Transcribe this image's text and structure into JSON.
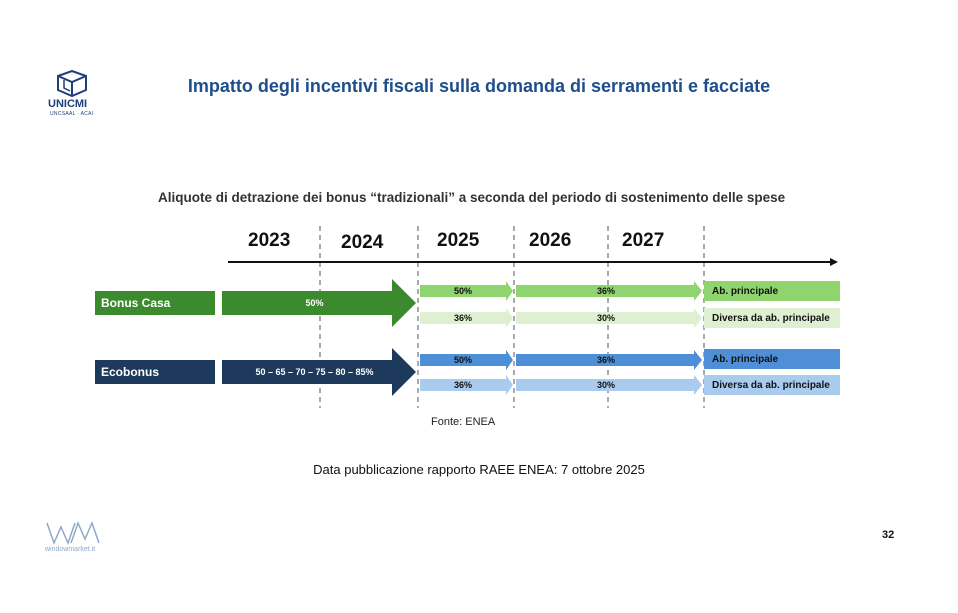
{
  "header": {
    "logo_text": "UNICMI",
    "logo_subtext": "UNCSAAL · ACAI",
    "title": "Impatto degli incentivi fiscali sulla domanda di serramenti e facciate"
  },
  "diagram": {
    "subtitle": "Aliquote di detrazione dei bonus “tradizionali” a seconda del periodo di sostenimento delle spese",
    "years": [
      "2023",
      "2024",
      "2025",
      "2026",
      "2027"
    ],
    "rows": [
      {
        "label": "Bonus Casa",
        "color": "#3c8a2e",
        "period_2023_2024": "50%",
        "principal": {
          "y2025": "50%",
          "y2026_2027": "36%",
          "tag": "Ab. principale",
          "color": "#8fd46e"
        },
        "other": {
          "y2025": "36%",
          "y2026_2027": "30%",
          "tag": "Diversa da ab. principale",
          "color": "#dff0d2"
        }
      },
      {
        "label": "Ecobonus",
        "color": "#1d3a5c",
        "period_2023_2024": "50 – 65 – 70 – 75 – 80 – 85%",
        "principal": {
          "y2025": "50%",
          "y2026_2027": "36%",
          "tag": "Ab. principale",
          "color": "#4f8fd8"
        },
        "other": {
          "y2025": "36%",
          "y2026_2027": "30%",
          "tag": "Diversa da ab. principale",
          "color": "#a9cbee"
        }
      }
    ],
    "source": "Fonte: ENEA"
  },
  "footer": {
    "publication": "Data pubblicazione rapporto RAEE ENEA: 7 ottobre 2025",
    "page_number": "32",
    "brand_text": "windowmarket.it"
  }
}
